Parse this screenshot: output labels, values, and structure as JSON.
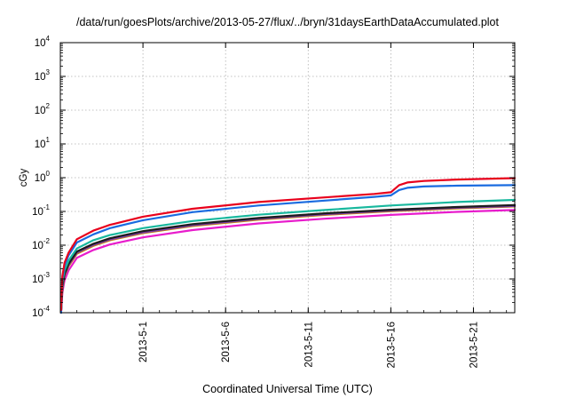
{
  "chart_data": {
    "type": "line",
    "title": "/data/run/goesPlots/archive/2013-05-27/flux/../bryn/31daysEarthDataAccumulated.plot",
    "xlabel": "Coordinated Universal Time (UTC)",
    "ylabel": "cGy",
    "yscale": "log",
    "ylim": [
      0.0001,
      10000
    ],
    "xlim": [
      "2013-04-26",
      "2013-05-23T12:00"
    ],
    "grid": true,
    "legend": "none",
    "y_ticks": [
      {
        "base": "10",
        "exp": "-4",
        "value": 0.0001
      },
      {
        "base": "10",
        "exp": "-3",
        "value": 0.001
      },
      {
        "base": "10",
        "exp": "-2",
        "value": 0.01
      },
      {
        "base": "10",
        "exp": "-1",
        "value": 0.1
      },
      {
        "base": "10",
        "exp": "0",
        "value": 1
      },
      {
        "base": "10",
        "exp": "1",
        "value": 10
      },
      {
        "base": "10",
        "exp": "2",
        "value": 100
      },
      {
        "base": "10",
        "exp": "3",
        "value": 1000
      },
      {
        "base": "10",
        "exp": "4",
        "value": 10000
      }
    ],
    "x_ticks": [
      {
        "label": "2013-5-1",
        "value": "2013-05-01"
      },
      {
        "label": "2013-5-6",
        "value": "2013-05-06"
      },
      {
        "label": "2013-5-11",
        "value": "2013-05-11"
      },
      {
        "label": "2013-5-16",
        "value": "2013-05-16"
      },
      {
        "label": "2013-5-21",
        "value": "2013-05-21"
      }
    ],
    "series": [
      {
        "color": "#e8001c",
        "x": [
          "2013-04-26T01:00",
          "2013-04-26T03:00",
          "2013-04-26T06:00",
          "2013-04-26T12:00",
          "2013-04-27",
          "2013-04-28",
          "2013-04-29",
          "2013-05-01",
          "2013-05-04",
          "2013-05-08",
          "2013-05-12",
          "2013-05-15",
          "2013-05-16",
          "2013-05-16T12:00",
          "2013-05-17",
          "2013-05-18",
          "2013-05-20",
          "2013-05-23T12:00"
        ],
        "y": [
          0.00012,
          0.0012,
          0.003,
          0.006,
          0.015,
          0.027,
          0.04,
          0.07,
          0.12,
          0.19,
          0.26,
          0.33,
          0.37,
          0.6,
          0.72,
          0.8,
          0.88,
          0.97
        ]
      },
      {
        "color": "#1a6be0",
        "x": [
          "2013-04-26T01:00",
          "2013-04-26T03:00",
          "2013-04-26T06:00",
          "2013-04-26T12:00",
          "2013-04-27",
          "2013-04-28",
          "2013-04-29",
          "2013-05-01",
          "2013-05-04",
          "2013-05-08",
          "2013-05-12",
          "2013-05-15",
          "2013-05-16",
          "2013-05-16T12:00",
          "2013-05-17",
          "2013-05-18",
          "2013-05-20",
          "2013-05-23T12:00"
        ],
        "y": [
          0.0001,
          0.001,
          0.0025,
          0.005,
          0.012,
          0.021,
          0.032,
          0.055,
          0.095,
          0.15,
          0.21,
          0.27,
          0.3,
          0.43,
          0.5,
          0.55,
          0.58,
          0.6
        ]
      },
      {
        "color": "#19b89e",
        "x": [
          "2013-04-26T01:00",
          "2013-04-26T03:00",
          "2013-04-26T06:00",
          "2013-04-26T12:00",
          "2013-04-27",
          "2013-04-28",
          "2013-04-29",
          "2013-05-01",
          "2013-05-04",
          "2013-05-08",
          "2013-05-12",
          "2013-05-16",
          "2013-05-20",
          "2013-05-23T12:00"
        ],
        "y": [
          0.0001,
          0.0008,
          0.0018,
          0.0035,
          0.008,
          0.014,
          0.02,
          0.032,
          0.052,
          0.08,
          0.11,
          0.15,
          0.19,
          0.22
        ]
      },
      {
        "color": "#1c1c1c",
        "x": [
          "2013-04-26T01:00",
          "2013-04-26T03:00",
          "2013-04-26T06:00",
          "2013-04-26T12:00",
          "2013-04-27",
          "2013-04-28",
          "2013-04-29",
          "2013-05-01",
          "2013-05-04",
          "2013-05-08",
          "2013-05-12",
          "2013-05-16",
          "2013-05-20",
          "2013-05-23T12:00"
        ],
        "y": [
          0.0001,
          0.0006,
          0.0014,
          0.0028,
          0.0065,
          0.011,
          0.016,
          0.026,
          0.042,
          0.064,
          0.088,
          0.112,
          0.135,
          0.155
        ]
      },
      {
        "color": "#7a3aa8",
        "x": [
          "2013-04-26T01:00",
          "2013-04-26T03:00",
          "2013-04-26T06:00",
          "2013-04-26T12:00",
          "2013-04-27",
          "2013-04-28",
          "2013-04-29",
          "2013-05-01",
          "2013-05-04",
          "2013-05-08",
          "2013-05-12",
          "2013-05-16",
          "2013-05-20",
          "2013-05-23T12:00"
        ],
        "y": [
          0.0001,
          0.00055,
          0.0013,
          0.0026,
          0.006,
          0.0102,
          0.0148,
          0.024,
          0.039,
          0.06,
          0.083,
          0.106,
          0.128,
          0.145
        ]
      },
      {
        "color": "#c8860a",
        "x": [
          "2013-04-26T01:00",
          "2013-04-26T03:00",
          "2013-04-26T06:00",
          "2013-04-26T12:00",
          "2013-04-27",
          "2013-04-28",
          "2013-04-29",
          "2013-05-01",
          "2013-05-04",
          "2013-05-08",
          "2013-05-12",
          "2013-05-16",
          "2013-05-20",
          "2013-05-23T12:00"
        ],
        "y": [
          0.0001,
          0.0005,
          0.0012,
          0.0024,
          0.0056,
          0.0096,
          0.014,
          0.0228,
          0.037,
          0.057,
          0.079,
          0.101,
          0.123,
          0.14
        ]
      },
      {
        "color": "#e81ccc",
        "x": [
          "2013-04-26T01:00",
          "2013-04-26T03:00",
          "2013-04-26T06:00",
          "2013-04-26T12:00",
          "2013-04-27",
          "2013-04-28",
          "2013-04-29",
          "2013-05-01",
          "2013-05-04",
          "2013-05-08",
          "2013-05-12",
          "2013-05-16",
          "2013-05-20",
          "2013-05-23T12:00"
        ],
        "y": [
          0.0001,
          0.0004,
          0.0009,
          0.0018,
          0.0042,
          0.0072,
          0.0105,
          0.017,
          0.028,
          0.044,
          0.061,
          0.079,
          0.097,
          0.11
        ]
      }
    ]
  }
}
